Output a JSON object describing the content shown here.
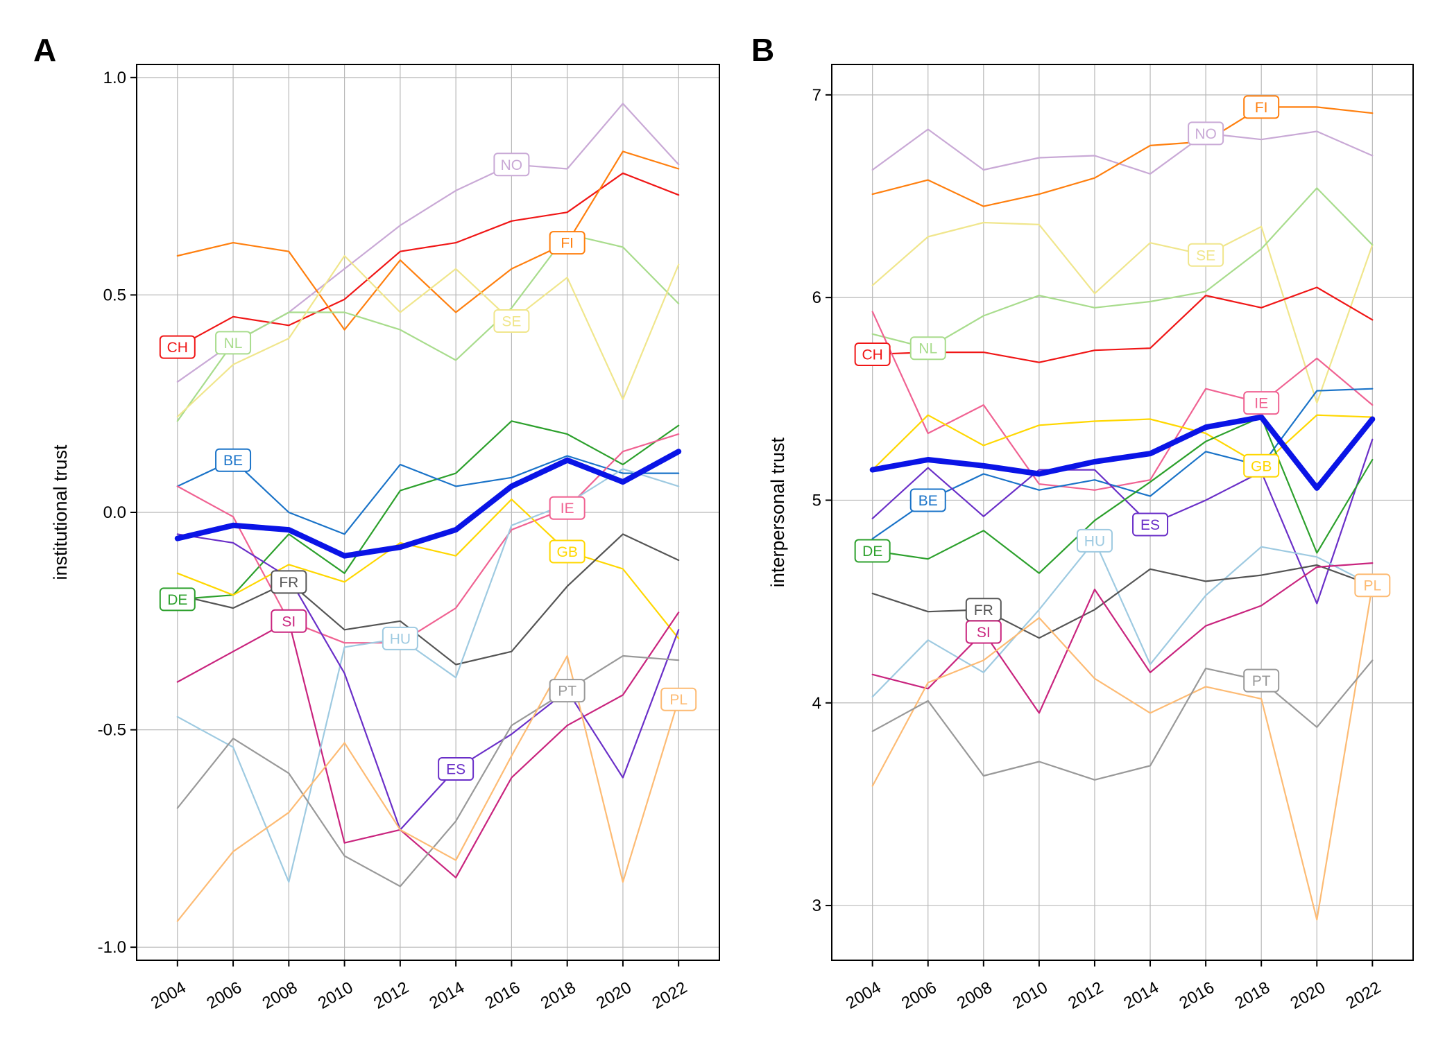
{
  "chart_data": [
    {
      "type": "line",
      "panel_label": "A",
      "ylabel": "institutional trust",
      "xlabel": "",
      "x": [
        2004,
        2006,
        2008,
        2010,
        2012,
        2014,
        2016,
        2018,
        2020,
        2022
      ],
      "xticks": [
        "2004",
        "2006",
        "2008",
        "2010",
        "2012",
        "2014",
        "2016",
        "2018",
        "2020",
        "2022"
      ],
      "ylim": [
        -1.03,
        1.03
      ],
      "yticks": [
        -1.0,
        -0.5,
        0.0,
        0.5,
        1.0
      ],
      "ytick_labels": [
        "-1.0",
        "-0.5",
        "0.0",
        "0.5",
        "1.0"
      ],
      "grid": true,
      "series": [
        {
          "name": "NO",
          "color": "#c9a9d6",
          "values": [
            0.3,
            0.39,
            0.46,
            0.56,
            0.66,
            0.74,
            0.8,
            0.79,
            0.94,
            0.8
          ],
          "label_at": 2016
        },
        {
          "name": "CH",
          "color": "#f01616",
          "values": [
            0.38,
            0.45,
            0.43,
            0.49,
            0.6,
            0.62,
            0.67,
            0.69,
            0.78,
            0.73
          ],
          "label_at": 2004
        },
        {
          "name": "FI",
          "color": "#ff7f0e",
          "values": [
            0.59,
            0.62,
            0.6,
            0.42,
            0.58,
            0.46,
            0.56,
            0.62,
            0.83,
            0.79
          ],
          "label_at": 2018
        },
        {
          "name": "NL",
          "color": "#a8dc8c",
          "values": [
            0.21,
            0.39,
            0.46,
            0.46,
            0.42,
            0.35,
            0.47,
            0.64,
            0.61,
            0.48
          ],
          "label_at": 2006
        },
        {
          "name": "SE",
          "color": "#f0e68c",
          "values": [
            0.22,
            0.34,
            0.4,
            0.59,
            0.46,
            0.56,
            0.44,
            0.54,
            0.26,
            0.57
          ],
          "label_at": 2016
        },
        {
          "name": "DE",
          "color": "#2ca02c",
          "values": [
            -0.2,
            -0.19,
            -0.05,
            -0.14,
            0.05,
            0.09,
            0.21,
            0.18,
            0.11,
            0.2
          ],
          "label_at": 2004
        },
        {
          "name": "BE",
          "color": "#1a73c8",
          "values": [
            0.06,
            0.12,
            0.0,
            -0.05,
            0.11,
            0.06,
            0.08,
            0.13,
            0.09,
            0.09
          ],
          "label_at": 2006
        },
        {
          "name": "IE",
          "color": "#f06292",
          "values": [
            0.06,
            -0.01,
            -0.25,
            -0.3,
            -0.3,
            -0.22,
            -0.04,
            0.01,
            0.14,
            0.18
          ],
          "label_at": 2018
        },
        {
          "name": "GB",
          "color": "#ffd700",
          "values": [
            -0.14,
            -0.19,
            -0.12,
            -0.16,
            -0.07,
            -0.1,
            0.03,
            -0.09,
            -0.13,
            -0.29
          ],
          "label_at": 2018
        },
        {
          "name": "FR",
          "color": "#555555",
          "values": [
            -0.19,
            -0.22,
            -0.16,
            -0.27,
            -0.25,
            -0.35,
            -0.32,
            -0.17,
            -0.05,
            -0.11
          ],
          "label_at": 2008
        },
        {
          "name": "SI",
          "color": "#c9247e",
          "values": [
            -0.39,
            -0.32,
            -0.25,
            -0.76,
            -0.73,
            -0.84,
            -0.61,
            -0.49,
            -0.42,
            -0.23
          ],
          "label_at": 2008
        },
        {
          "name": "HU",
          "color": "#9ecae1",
          "values": [
            -0.47,
            -0.54,
            -0.85,
            -0.31,
            -0.29,
            -0.38,
            -0.03,
            0.02,
            0.1,
            0.06
          ],
          "label_at": 2012
        },
        {
          "name": "ES",
          "color": "#6a2fc8",
          "values": [
            -0.05,
            -0.07,
            -0.15,
            -0.37,
            -0.73,
            -0.59,
            -0.51,
            -0.41,
            -0.61,
            -0.27
          ],
          "label_at": 2014
        },
        {
          "name": "PT",
          "color": "#999999",
          "values": [
            -0.68,
            -0.52,
            -0.6,
            -0.79,
            -0.86,
            -0.71,
            -0.49,
            -0.41,
            -0.33,
            -0.34
          ],
          "label_at": 2018
        },
        {
          "name": "PL",
          "color": "#fdbb74",
          "values": [
            -0.94,
            -0.78,
            -0.69,
            -0.53,
            -0.73,
            -0.8,
            -0.56,
            -0.33,
            -0.85,
            -0.43
          ],
          "label_at": 2022
        },
        {
          "name": "",
          "color": "#0a14e6",
          "values": [
            -0.06,
            -0.03,
            -0.04,
            -0.1,
            -0.08,
            -0.04,
            0.06,
            0.12,
            0.07,
            0.14
          ],
          "bold": true
        }
      ]
    },
    {
      "type": "line",
      "panel_label": "B",
      "ylabel": "interpersonal trust",
      "xlabel": "",
      "x": [
        2004,
        2006,
        2008,
        2010,
        2012,
        2014,
        2016,
        2018,
        2020,
        2022
      ],
      "xticks": [
        "2004",
        "2006",
        "2008",
        "2010",
        "2012",
        "2014",
        "2016",
        "2018",
        "2020",
        "2022"
      ],
      "ylim": [
        2.73,
        7.15
      ],
      "yticks": [
        3,
        4,
        5,
        6,
        7
      ],
      "ytick_labels": [
        "3",
        "4",
        "5",
        "6",
        "7"
      ],
      "grid": true,
      "series": [
        {
          "name": "NO",
          "color": "#c9a9d6",
          "values": [
            6.63,
            6.83,
            6.63,
            6.69,
            6.7,
            6.61,
            6.81,
            6.78,
            6.82,
            6.7
          ],
          "label_at": 2016
        },
        {
          "name": "FI",
          "color": "#ff7f0e",
          "values": [
            6.51,
            6.58,
            6.45,
            6.51,
            6.59,
            6.75,
            6.77,
            6.94,
            6.94,
            6.91
          ],
          "label_at": 2018
        },
        {
          "name": "SE",
          "color": "#f0e68c",
          "values": [
            6.06,
            6.3,
            6.37,
            6.36,
            6.02,
            6.27,
            6.21,
            6.35,
            5.48,
            6.26
          ],
          "label_at": 2016
        },
        {
          "name": "NL",
          "color": "#a8dc8c",
          "values": [
            5.82,
            5.75,
            5.91,
            6.01,
            5.95,
            5.98,
            6.03,
            6.24,
            6.54,
            6.26
          ],
          "label_at": 2006
        },
        {
          "name": "CH",
          "color": "#f01616",
          "values": [
            5.72,
            5.73,
            5.73,
            5.68,
            5.74,
            5.75,
            6.01,
            5.95,
            6.05,
            5.89
          ],
          "label_at": 2004
        },
        {
          "name": "IE",
          "color": "#f06292",
          "values": [
            5.93,
            5.33,
            5.47,
            5.08,
            5.05,
            5.1,
            5.55,
            5.48,
            5.7,
            5.47
          ],
          "label_at": 2018
        },
        {
          "name": "GB",
          "color": "#ffd700",
          "values": [
            5.15,
            5.42,
            5.27,
            5.37,
            5.39,
            5.4,
            5.33,
            5.17,
            5.42,
            5.41
          ],
          "label_at": 2018
        },
        {
          "name": "BE",
          "color": "#1a73c8",
          "values": [
            4.81,
            5.0,
            5.13,
            5.05,
            5.1,
            5.02,
            5.24,
            5.17,
            5.54,
            5.55
          ],
          "label_at": 2006
        },
        {
          "name": "ES",
          "color": "#6a2fc8",
          "values": [
            4.91,
            5.16,
            4.92,
            5.15,
            5.15,
            4.88,
            5.0,
            5.14,
            4.49,
            5.3
          ],
          "label_at": 2014
        },
        {
          "name": "DE",
          "color": "#2ca02c",
          "values": [
            4.75,
            4.71,
            4.85,
            4.64,
            4.9,
            5.09,
            5.29,
            5.41,
            4.74,
            5.2
          ],
          "label_at": 2004
        },
        {
          "name": "HU",
          "color": "#9ecae1",
          "values": [
            4.03,
            4.31,
            4.15,
            4.46,
            4.8,
            4.19,
            4.53,
            4.77,
            4.72,
            4.58
          ],
          "label_at": 2012
        },
        {
          "name": "FR",
          "color": "#555555",
          "values": [
            4.54,
            4.45,
            4.46,
            4.32,
            4.46,
            4.66,
            4.6,
            4.63,
            4.68,
            4.58
          ],
          "label_at": 2008
        },
        {
          "name": "SI",
          "color": "#c9247e",
          "values": [
            4.14,
            4.07,
            4.35,
            3.95,
            4.56,
            4.15,
            4.38,
            4.48,
            4.67,
            4.69
          ],
          "label_at": 2008
        },
        {
          "name": "PL",
          "color": "#fdbb74",
          "values": [
            3.59,
            4.1,
            4.21,
            4.42,
            4.12,
            3.95,
            4.08,
            4.02,
            2.93,
            4.58
          ],
          "label_at": 2022
        },
        {
          "name": "PT",
          "color": "#999999",
          "values": [
            3.86,
            4.01,
            3.64,
            3.71,
            3.62,
            3.69,
            4.17,
            4.11,
            3.88,
            4.21
          ],
          "label_at": 2018
        },
        {
          "name": "",
          "color": "#0a14e6",
          "values": [
            5.15,
            5.2,
            5.17,
            5.13,
            5.19,
            5.23,
            5.36,
            5.41,
            5.06,
            5.4
          ],
          "bold": true
        }
      ]
    }
  ]
}
